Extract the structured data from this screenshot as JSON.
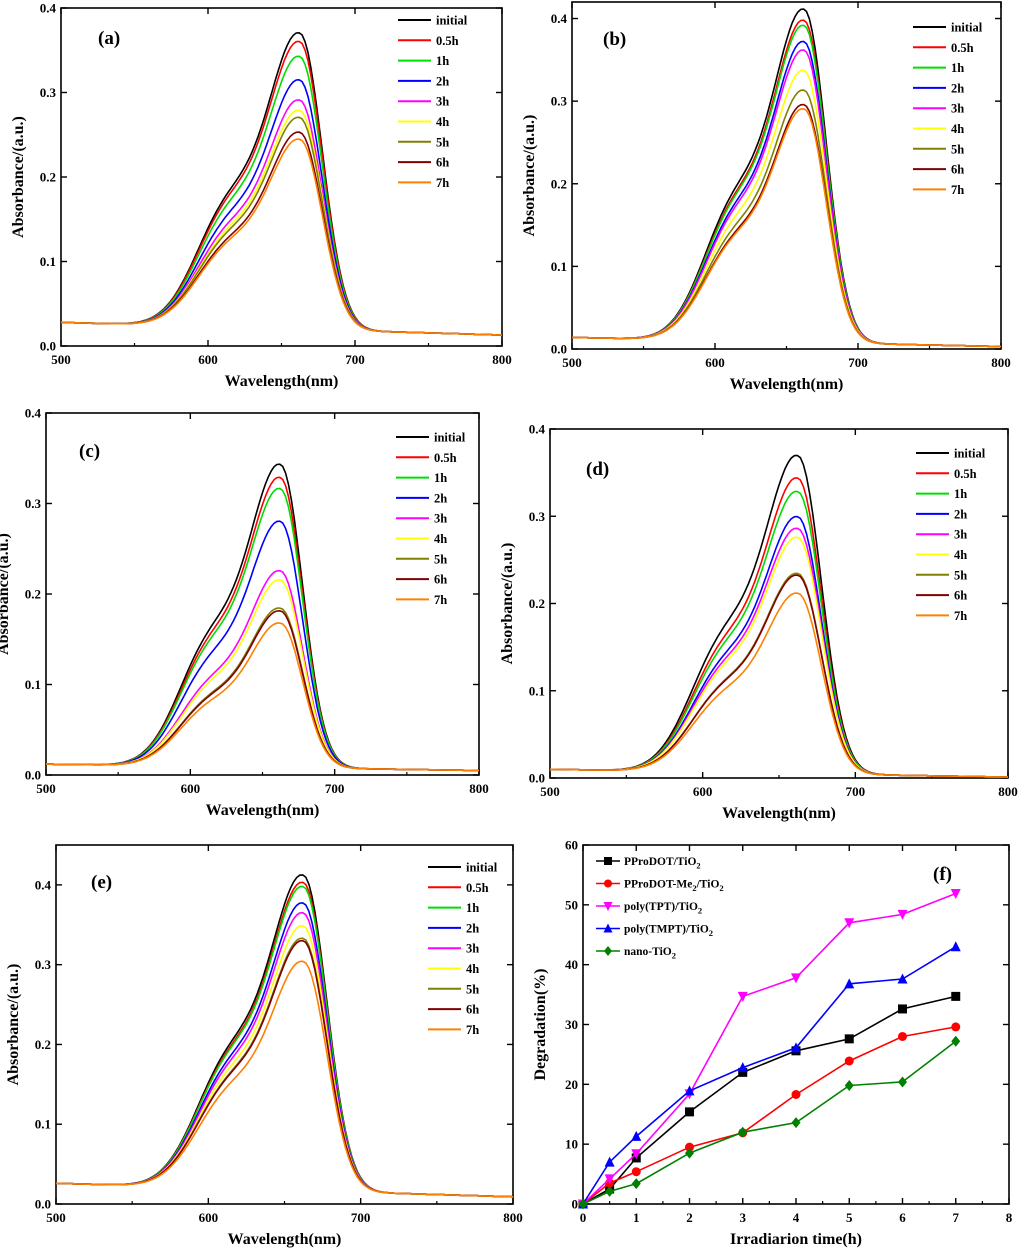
{
  "chart_data": [
    {
      "type": "line",
      "panel_label": "(a)",
      "xlabel": "Wavelength(nm)",
      "ylabel": "Absorbance/(a.u.)",
      "xlim": [
        500,
        800
      ],
      "ylim": [
        0,
        0.4
      ],
      "x_ticks": [
        500,
        600,
        700,
        800
      ],
      "y_ticks": [
        0,
        0.1,
        0.2,
        0.3,
        0.4
      ],
      "x_tick_labels": [
        "500",
        "600",
        "700",
        "800"
      ],
      "y_tick_labels": [
        "0.0",
        "0.1",
        "0.2",
        "0.3",
        "0.4"
      ],
      "baseline_start": 0.028,
      "baseline_end": 0.013,
      "legend_position": "top-right",
      "series": [
        {
          "name": "initial",
          "color": "#000000",
          "peak": 0.35
        },
        {
          "name": "0.5h",
          "color": "#ff0000",
          "peak": 0.34
        },
        {
          "name": "1h",
          "color": "#00dd00",
          "peak": 0.323
        },
        {
          "name": "2h",
          "color": "#0000ff",
          "peak": 0.296
        },
        {
          "name": "3h",
          "color": "#ff00ff",
          "peak": 0.273
        },
        {
          "name": "4h",
          "color": "#ffff00",
          "peak": 0.261
        },
        {
          "name": "5h",
          "color": "#808000",
          "peak": 0.253
        },
        {
          "name": "6h",
          "color": "#800000",
          "peak": 0.236
        },
        {
          "name": "7h",
          "color": "#ff8000",
          "peak": 0.228
        }
      ]
    },
    {
      "type": "line",
      "panel_label": "(b)",
      "xlabel": "Wavelength(nm)",
      "ylabel": "",
      "xlim": [
        500,
        800
      ],
      "ylim": [
        0,
        0.42
      ],
      "x_ticks": [
        500,
        600,
        700,
        800
      ],
      "y_ticks": [
        0,
        0.1,
        0.2,
        0.3,
        0.4
      ],
      "x_tick_labels": [
        "500",
        "600",
        "700",
        "800"
      ],
      "y_tick_labels": [
        "0.0",
        "0.1",
        "0.2",
        "0.3",
        "0.4"
      ],
      "baseline_start": 0.014,
      "baseline_end": 0.003,
      "legend_position": "top-right",
      "series": [
        {
          "name": "initial",
          "color": "#000000",
          "peak": 0.395
        },
        {
          "name": "0.5h",
          "color": "#ff0000",
          "peak": 0.382
        },
        {
          "name": "1h",
          "color": "#00dd00",
          "peak": 0.376
        },
        {
          "name": "2h",
          "color": "#0000ff",
          "peak": 0.357
        },
        {
          "name": "3h",
          "color": "#ff00ff",
          "peak": 0.347
        },
        {
          "name": "4h",
          "color": "#ffff00",
          "peak": 0.323
        },
        {
          "name": "5h",
          "color": "#808000",
          "peak": 0.3
        },
        {
          "name": "6h",
          "color": "#800000",
          "peak": 0.283
        },
        {
          "name": "7h",
          "color": "#ff8000",
          "peak": 0.278
        }
      ]
    },
    {
      "type": "line",
      "panel_label": "(c)",
      "xlabel": "Wavelength(nm)",
      "ylabel": "Absorbance/(a.u.)",
      "xlim": [
        500,
        800
      ],
      "ylim": [
        0,
        0.4
      ],
      "x_ticks": [
        500,
        600,
        700,
        800
      ],
      "y_ticks": [
        0,
        0.1,
        0.2,
        0.3,
        0.4
      ],
      "x_tick_labels": [
        "500",
        "600",
        "700",
        "800"
      ],
      "y_tick_labels": [
        "0.0",
        "0.1",
        "0.2",
        "0.3",
        "0.4"
      ],
      "baseline_start": 0.012,
      "baseline_end": 0.005,
      "legend_position": "top-right",
      "series": [
        {
          "name": "initial",
          "color": "#000000",
          "peak": 0.329
        },
        {
          "name": "0.5h",
          "color": "#ff0000",
          "peak": 0.315
        },
        {
          "name": "1h",
          "color": "#00dd00",
          "peak": 0.303
        },
        {
          "name": "2h",
          "color": "#0000ff",
          "peak": 0.268
        },
        {
          "name": "3h",
          "color": "#ff00ff",
          "peak": 0.215
        },
        {
          "name": "4h",
          "color": "#ffff00",
          "peak": 0.205
        },
        {
          "name": "5h",
          "color": "#808000",
          "peak": 0.175
        },
        {
          "name": "6h",
          "color": "#800000",
          "peak": 0.172
        },
        {
          "name": "7h",
          "color": "#ff8000",
          "peak": 0.159
        }
      ]
    },
    {
      "type": "line",
      "panel_label": "(d)",
      "xlabel": "Wavelength(nm)",
      "ylabel": "Absorbance/(a.u.)",
      "xlim": [
        500,
        800
      ],
      "ylim": [
        0,
        0.4
      ],
      "x_ticks": [
        500,
        600,
        700,
        800
      ],
      "y_ticks": [
        0,
        0.1,
        0.2,
        0.3,
        0.4
      ],
      "x_tick_labels": [
        "500",
        "600",
        "700",
        "800"
      ],
      "y_tick_labels": [
        "0.0",
        "0.1",
        "0.2",
        "0.3",
        "0.4"
      ],
      "baseline_start": 0.01,
      "baseline_end": 0.001,
      "legend_position": "top-right",
      "series": [
        {
          "name": "initial",
          "color": "#000000",
          "peak": 0.356
        },
        {
          "name": "0.5h",
          "color": "#ff0000",
          "peak": 0.331
        },
        {
          "name": "1h",
          "color": "#00dd00",
          "peak": 0.316
        },
        {
          "name": "2h",
          "color": "#0000ff",
          "peak": 0.288
        },
        {
          "name": "3h",
          "color": "#ff00ff",
          "peak": 0.275
        },
        {
          "name": "4h",
          "color": "#ffff00",
          "peak": 0.265
        },
        {
          "name": "5h",
          "color": "#808000",
          "peak": 0.225
        },
        {
          "name": "6h",
          "color": "#800000",
          "peak": 0.223
        },
        {
          "name": "7h",
          "color": "#ff8000",
          "peak": 0.203
        }
      ]
    },
    {
      "type": "line",
      "panel_label": "(e)",
      "xlabel": "Wavelength(nm)",
      "ylabel": "Absorbance/(a.u.)",
      "xlim": [
        500,
        800
      ],
      "ylim": [
        0,
        0.45
      ],
      "x_ticks": [
        500,
        600,
        700,
        800
      ],
      "y_ticks": [
        0,
        0.1,
        0.2,
        0.3,
        0.4
      ],
      "x_tick_labels": [
        "500",
        "600",
        "700",
        "800"
      ],
      "y_tick_labels": [
        "0.0",
        "0.1",
        "0.2",
        "0.3",
        "0.4"
      ],
      "baseline_start": 0.026,
      "baseline_end": 0.009,
      "legend_position": "top-right",
      "series": [
        {
          "name": "initial",
          "color": "#000000",
          "peak": 0.392
        },
        {
          "name": "0.5h",
          "color": "#ff0000",
          "peak": 0.383
        },
        {
          "name": "1h",
          "color": "#00dd00",
          "peak": 0.378
        },
        {
          "name": "2h",
          "color": "#0000ff",
          "peak": 0.358
        },
        {
          "name": "3h",
          "color": "#ff00ff",
          "peak": 0.346
        },
        {
          "name": "4h",
          "color": "#ffff00",
          "peak": 0.33
        },
        {
          "name": "5h",
          "color": "#808000",
          "peak": 0.315
        },
        {
          "name": "6h",
          "color": "#800000",
          "peak": 0.312
        },
        {
          "name": "7h",
          "color": "#ff8000",
          "peak": 0.287
        }
      ]
    },
    {
      "type": "line",
      "panel_label": "(f)",
      "xlabel": "Irradiarion time(h)",
      "ylabel": "Degradation(%)",
      "xlim": [
        0,
        8
      ],
      "ylim": [
        0,
        60
      ],
      "x_ticks": [
        0,
        1,
        2,
        3,
        4,
        5,
        6,
        7,
        8
      ],
      "y_ticks": [
        0,
        10,
        20,
        30,
        40,
        50,
        60
      ],
      "x_tick_labels": [
        "0",
        "1",
        "2",
        "3",
        "4",
        "5",
        "6",
        "7",
        "8"
      ],
      "y_tick_labels": [
        "0",
        "10",
        "20",
        "30",
        "40",
        "50",
        "60"
      ],
      "x": [
        0,
        0.5,
        1,
        2,
        3,
        4,
        5,
        6,
        7
      ],
      "legend_position": "top-left",
      "series": [
        {
          "name": "PProDOT/TiO",
          "sub": "2",
          "tail": "",
          "color": "#000000",
          "marker": "square",
          "values": [
            0,
            2.5,
            7.7,
            15.4,
            22,
            25.6,
            27.6,
            32.6,
            34.7
          ]
        },
        {
          "name": "PProDOT-Me",
          "sub": "2",
          "tail": "/TiO2",
          "color": "#ff0000",
          "marker": "circle",
          "values": [
            0,
            3.5,
            5.4,
            9.5,
            11.9,
            18.3,
            23.9,
            28,
            29.6
          ]
        },
        {
          "name": "poly(TPT)/TiO",
          "sub": "2",
          "tail": "",
          "color": "#ff00ff",
          "marker": "triangle-down",
          "values": [
            0,
            4.2,
            8.4,
            18.4,
            34.7,
            37.8,
            47,
            48.4,
            51.9
          ]
        },
        {
          "name": "poly(TMPT)/TiO",
          "sub": "2",
          "tail": "",
          "color": "#0000ff",
          "marker": "triangle-up",
          "values": [
            0,
            7,
            11.3,
            18.9,
            22.8,
            26.1,
            36.8,
            37.6,
            43
          ]
        },
        {
          "name": "nano-TiO",
          "sub": "2",
          "tail": "",
          "color": "#008000",
          "marker": "diamond",
          "values": [
            0,
            2.1,
            3.4,
            8.5,
            12,
            13.6,
            19.8,
            20.4,
            27.2
          ]
        }
      ]
    }
  ]
}
